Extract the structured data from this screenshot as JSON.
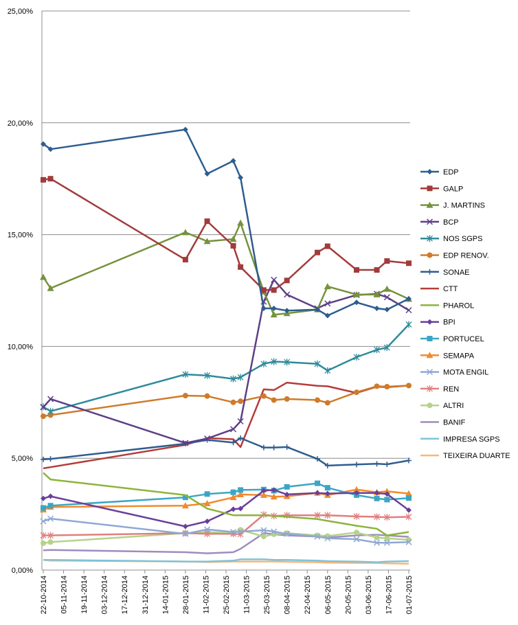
{
  "chart_data": {
    "type": "line",
    "title": "",
    "xlabel": "",
    "ylabel": "",
    "ylim": [
      0,
      25
    ],
    "ytick_values": [
      0,
      5,
      10,
      15,
      20,
      25
    ],
    "ytick_labels": [
      "0,00%",
      "5,00%",
      "10,00%",
      "15,00%",
      "20,00%",
      "25,00%"
    ],
    "xtick_labels": [
      "22-10-2014",
      "05-11-2014",
      "19-11-2014",
      "03-12-2014",
      "17-12-2014",
      "31-12-2014",
      "14-01-2015",
      "28-01-2015",
      "11-02-2015",
      "25-02-2015",
      "11-03-2015",
      "25-03-2015",
      "08-04-2015",
      "22-04-2015",
      "06-05-2015",
      "20-05-2015",
      "03-06-2015",
      "17-06-2015",
      "01-07-2015"
    ],
    "grid": "horizontal",
    "legend_position": "right",
    "x": [
      "22-10-2014",
      "27-10-2014",
      "28-01-2015",
      "12-02-2015",
      "02-03-2015",
      "07-03-2015",
      "23-03-2015",
      "30-03-2015",
      "08-04-2015",
      "29-04-2015",
      "06-05-2015",
      "26-05-2015",
      "09-06-2015",
      "16-06-2015",
      "01-07-2015"
    ],
    "series": [
      {
        "name": "EDP",
        "color": "#2e5d8f",
        "marker": "diamond",
        "values": [
          19.05,
          18.82,
          19.7,
          17.72,
          18.3,
          17.55,
          11.7,
          11.7,
          11.6,
          11.65,
          11.38,
          11.97,
          11.7,
          11.65,
          12.13
        ]
      },
      {
        "name": "GALP",
        "color": "#a23b3b",
        "marker": "square",
        "values": [
          17.45,
          17.5,
          13.88,
          15.6,
          14.5,
          13.55,
          12.52,
          12.52,
          12.95,
          14.2,
          14.48,
          13.42,
          13.42,
          13.82,
          13.72
        ]
      },
      {
        "name": "J. MARTINS",
        "color": "#76923c",
        "marker": "triangle",
        "values": [
          13.1,
          12.6,
          15.1,
          14.7,
          14.8,
          15.52,
          12.45,
          11.42,
          11.48,
          11.65,
          12.68,
          12.32,
          12.32,
          12.57,
          12.12
        ]
      },
      {
        "name": "BCP",
        "color": "#5c3f86",
        "marker": "x",
        "values": [
          7.28,
          7.65,
          5.68,
          5.88,
          6.3,
          6.65,
          12.0,
          12.98,
          12.32,
          11.7,
          11.92,
          12.3,
          12.35,
          12.2,
          11.62
        ]
      },
      {
        "name": "NOS SGPS",
        "color": "#2e8b9a",
        "marker": "star",
        "values": [
          7.3,
          7.1,
          8.75,
          8.7,
          8.55,
          8.62,
          9.22,
          9.32,
          9.3,
          9.22,
          8.92,
          9.52,
          9.85,
          9.95,
          10.98
        ]
      },
      {
        "name": "EDP RENOV.",
        "color": "#d07a2a",
        "marker": "circle",
        "values": [
          6.88,
          6.93,
          7.8,
          7.78,
          7.5,
          7.55,
          7.78,
          7.6,
          7.65,
          7.6,
          7.48,
          7.95,
          8.22,
          8.2,
          8.25
        ]
      },
      {
        "name": "SONAE",
        "color": "#2e5d8f",
        "marker": "plus",
        "values": [
          4.95,
          4.97,
          5.65,
          5.82,
          5.7,
          5.9,
          5.48,
          5.48,
          5.5,
          4.97,
          4.67,
          4.72,
          4.75,
          4.73,
          4.9
        ]
      },
      {
        "name": "CTT",
        "color": "#b53c3a",
        "marker": "dash",
        "values": [
          4.55,
          4.6,
          5.6,
          5.9,
          5.85,
          5.5,
          8.08,
          8.05,
          8.38,
          8.24,
          8.22,
          7.92,
          8.2,
          8.18,
          8.25
        ]
      },
      {
        "name": "PHAROL",
        "color": "#8db33d",
        "marker": "dash",
        "values": [
          4.35,
          4.05,
          3.35,
          2.75,
          2.45,
          2.45,
          2.45,
          2.42,
          2.38,
          2.28,
          2.2,
          1.98,
          1.85,
          1.55,
          1.7
        ]
      },
      {
        "name": "BPI",
        "color": "#6a3f9a",
        "marker": "diamond",
        "values": [
          3.2,
          3.3,
          1.95,
          2.18,
          2.72,
          2.75,
          3.55,
          3.58,
          3.38,
          3.45,
          3.42,
          3.45,
          3.45,
          3.4,
          2.68
        ]
      },
      {
        "name": "PORTUCEL",
        "color": "#3ba6c4",
        "marker": "square",
        "values": [
          2.78,
          2.88,
          3.25,
          3.4,
          3.48,
          3.58,
          3.6,
          3.55,
          3.72,
          3.88,
          3.68,
          3.35,
          3.2,
          3.15,
          3.22
        ]
      },
      {
        "name": "SEMAPA",
        "color": "#f18a2e",
        "marker": "triangle",
        "values": [
          2.7,
          2.82,
          2.88,
          2.98,
          3.25,
          3.38,
          3.35,
          3.28,
          3.3,
          3.45,
          3.35,
          3.6,
          3.48,
          3.52,
          3.42
        ]
      },
      {
        "name": "MOTA ENGIL",
        "color": "#8fa8d4",
        "marker": "x",
        "values": [
          2.18,
          2.3,
          1.62,
          1.82,
          1.7,
          1.72,
          1.78,
          1.72,
          1.62,
          1.5,
          1.42,
          1.38,
          1.22,
          1.22,
          1.25
        ]
      },
      {
        "name": "REN",
        "color": "#e07f7f",
        "marker": "star",
        "values": [
          1.55,
          1.55,
          1.65,
          1.62,
          1.62,
          1.6,
          2.48,
          2.42,
          2.45,
          2.45,
          2.45,
          2.4,
          2.38,
          2.36,
          2.38
        ]
      },
      {
        "name": "ALTRI",
        "color": "#b5d38a",
        "marker": "circle",
        "values": [
          1.2,
          1.25,
          1.65,
          1.7,
          1.65,
          1.8,
          1.5,
          1.6,
          1.65,
          1.55,
          1.52,
          1.68,
          1.45,
          1.42,
          1.35
        ]
      },
      {
        "name": "BANIF",
        "color": "#a08cbc",
        "marker": "dash",
        "values": [
          0.88,
          0.9,
          0.8,
          0.75,
          0.8,
          0.95,
          1.65,
          1.6,
          1.55,
          1.5,
          1.45,
          1.55,
          1.58,
          1.55,
          1.48
        ]
      },
      {
        "name": "IMPRESA SGPS",
        "color": "#7fc3d8",
        "marker": "dash",
        "values": [
          0.45,
          0.45,
          0.38,
          0.38,
          0.42,
          0.48,
          0.48,
          0.45,
          0.45,
          0.42,
          0.4,
          0.38,
          0.35,
          0.38,
          0.4
        ]
      },
      {
        "name": "TEIXEIRA DUARTE",
        "color": "#f8b67a",
        "marker": "dash",
        "values": [
          0.45,
          0.42,
          0.38,
          0.36,
          0.38,
          0.38,
          0.38,
          0.38,
          0.37,
          0.35,
          0.33,
          0.32,
          0.32,
          0.3,
          0.28
        ]
      }
    ]
  }
}
